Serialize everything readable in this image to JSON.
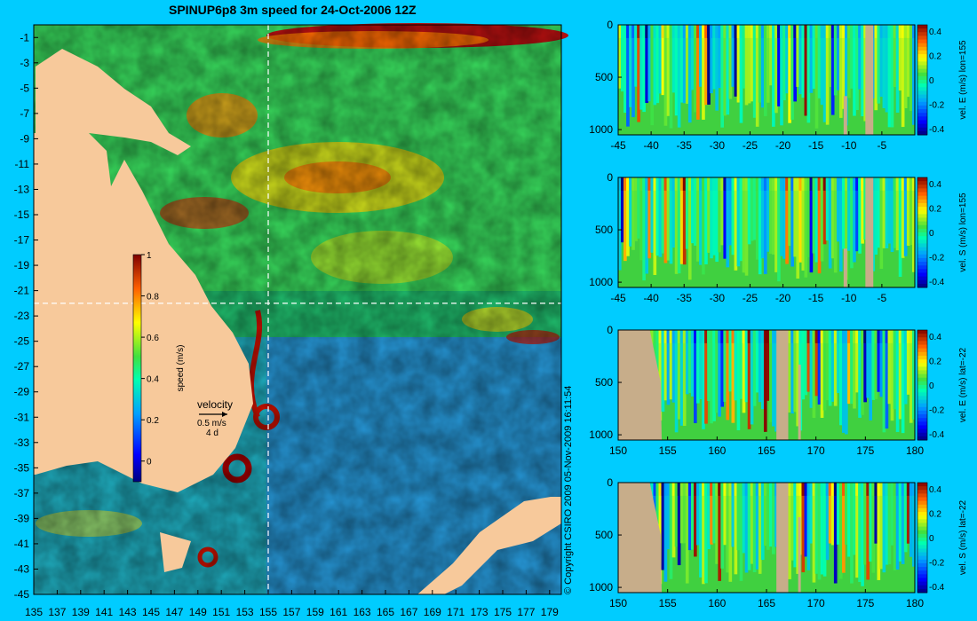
{
  "title": "SPINUP6p8 3m speed for 24-Oct-2006 12Z",
  "copyright": "© Copyright CSIRO 2009  05-Nov-2009 16:11:54",
  "colors": {
    "land": "#f7c99b",
    "land_section": "#c7ad8a",
    "background": "#00ccff"
  },
  "map": {
    "lon_ticks": [
      "135",
      "137",
      "139",
      "141",
      "143",
      "145",
      "147",
      "149",
      "151",
      "153",
      "155",
      "157",
      "159",
      "161",
      "163",
      "165",
      "167",
      "169",
      "171",
      "173",
      "175",
      "177",
      "179"
    ],
    "lat_ticks": [
      "-1",
      "-3",
      "-5",
      "-7",
      "-9",
      "-11",
      "-13",
      "-15",
      "-17",
      "-19",
      "-21",
      "-23",
      "-25",
      "-27",
      "-29",
      "-31",
      "-33",
      "-35",
      "-37",
      "-39",
      "-41",
      "-43",
      "-45"
    ],
    "section_lon": 155,
    "section_lat": -22,
    "colorbar": {
      "label": "speed (m/s)",
      "ticks": [
        "1",
        "0.8",
        "0.6",
        "0.4",
        "0.2",
        "0"
      ],
      "range": [
        -0.1,
        1
      ]
    },
    "velocity_key": {
      "title": "velocity",
      "speed": "0.5 m/s",
      "duration": "4 d"
    }
  },
  "chart_data": [
    {
      "type": "heatmap",
      "xlabel": "",
      "ylabel": "",
      "colorbar_label": "vel. E (m/s) lon=155",
      "x_ticks": [
        "-45",
        "-40",
        "-35",
        "-30",
        "-25",
        "-20",
        "-15",
        "-10",
        "-5"
      ],
      "y_ticks": [
        "0",
        "500",
        "1000"
      ],
      "cbar_ticks": [
        "0.4",
        "0.2",
        "0",
        "-0.2",
        "-0.4"
      ],
      "xlim": [
        -45,
        0
      ],
      "ylim": [
        0,
        1050
      ],
      "clim": [
        -0.45,
        0.45
      ]
    },
    {
      "type": "heatmap",
      "xlabel": "",
      "ylabel": "",
      "colorbar_label": "vel. S (m/s) lon=155",
      "x_ticks": [
        "-45",
        "-40",
        "-35",
        "-30",
        "-25",
        "-20",
        "-15",
        "-10",
        "-5"
      ],
      "y_ticks": [
        "0",
        "500",
        "1000"
      ],
      "cbar_ticks": [
        "0.4",
        "0.2",
        "0",
        "-0.2",
        "-0.4"
      ],
      "xlim": [
        -45,
        0
      ],
      "ylim": [
        0,
        1050
      ],
      "clim": [
        -0.45,
        0.45
      ]
    },
    {
      "type": "heatmap",
      "xlabel": "",
      "ylabel": "",
      "colorbar_label": "vel. E (m/s) lat=-22",
      "x_ticks": [
        "150",
        "155",
        "160",
        "165",
        "170",
        "175",
        "180"
      ],
      "y_ticks": [
        "0",
        "500",
        "1000"
      ],
      "cbar_ticks": [
        "0.4",
        "0.2",
        "0",
        "-0.2",
        "-0.4"
      ],
      "xlim": [
        150,
        180
      ],
      "ylim": [
        0,
        1050
      ],
      "clim": [
        -0.45,
        0.45
      ]
    },
    {
      "type": "heatmap",
      "xlabel": "",
      "ylabel": "",
      "colorbar_label": "vel. S (m/s) lat=-22",
      "x_ticks": [
        "150",
        "155",
        "160",
        "165",
        "170",
        "175",
        "180"
      ],
      "y_ticks": [
        "0",
        "500",
        "1000"
      ],
      "cbar_ticks": [
        "0.4",
        "0.2",
        "0",
        "-0.2",
        "-0.4"
      ],
      "xlim": [
        150,
        180
      ],
      "ylim": [
        0,
        1050
      ],
      "clim": [
        -0.45,
        0.45
      ]
    }
  ]
}
